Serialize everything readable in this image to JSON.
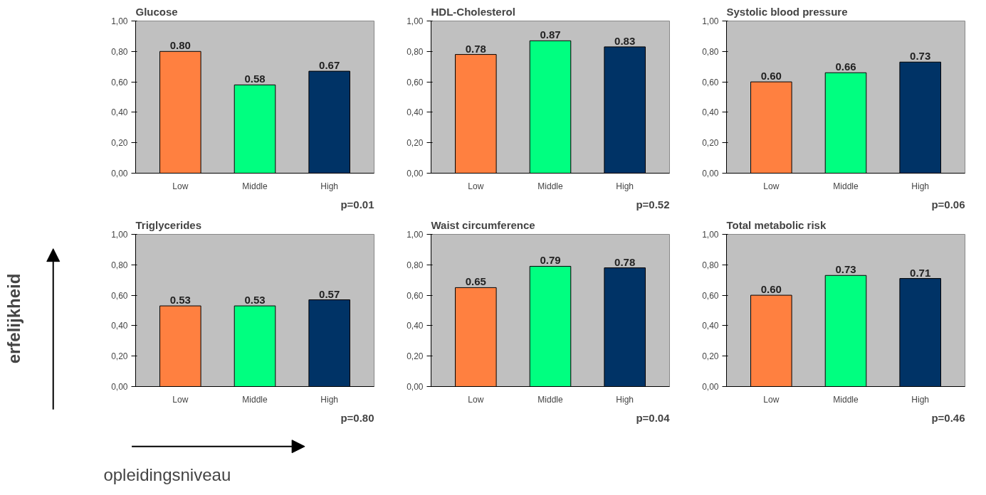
{
  "chart_data": [
    {
      "type": "bar",
      "title": "Glucose",
      "categories": [
        "Low",
        "Middle",
        "High"
      ],
      "values": [
        0.8,
        0.58,
        0.67
      ],
      "value_labels": [
        "0.80",
        "0.58",
        "0.67"
      ],
      "colors": [
        "#ff8040",
        "#00ff80",
        "#003366"
      ],
      "ylim": [
        0,
        1
      ],
      "yticks": [
        {
          "value": 0,
          "label": "0,00"
        },
        {
          "value": 0.2,
          "label": "0,20"
        },
        {
          "value": 0.4,
          "label": "0,40"
        },
        {
          "value": 0.6,
          "label": "0,60"
        },
        {
          "value": 0.8,
          "label": "0,80"
        },
        {
          "value": 1,
          "label": "1,00"
        }
      ],
      "annotations": [
        "p=0.01"
      ]
    },
    {
      "type": "bar",
      "title": "HDL-Cholesterol",
      "categories": [
        "Low",
        "Middle",
        "High"
      ],
      "values": [
        0.78,
        0.87,
        0.83
      ],
      "value_labels": [
        "0.78",
        "0.87",
        "0.83"
      ],
      "colors": [
        "#ff8040",
        "#00ff80",
        "#003366"
      ],
      "ylim": [
        0,
        1
      ],
      "yticks": [
        {
          "value": 0,
          "label": "0,00"
        },
        {
          "value": 0.2,
          "label": "0,20"
        },
        {
          "value": 0.4,
          "label": "0,40"
        },
        {
          "value": 0.6,
          "label": "0,60"
        },
        {
          "value": 0.8,
          "label": "0,80"
        },
        {
          "value": 1,
          "label": "1,00"
        }
      ],
      "annotations": [
        "p=0.52"
      ]
    },
    {
      "type": "bar",
      "title": "Systolic blood pressure",
      "categories": [
        "Low",
        "Middle",
        "High"
      ],
      "values": [
        0.6,
        0.66,
        0.73
      ],
      "value_labels": [
        "0.60",
        "0.66",
        "0.73"
      ],
      "colors": [
        "#ff8040",
        "#00ff80",
        "#003366"
      ],
      "ylim": [
        0,
        1
      ],
      "yticks": [
        {
          "value": 0,
          "label": "0,00"
        },
        {
          "value": 0.2,
          "label": "0,20"
        },
        {
          "value": 0.4,
          "label": "0,40"
        },
        {
          "value": 0.6,
          "label": "0,60"
        },
        {
          "value": 0.8,
          "label": "0,80"
        },
        {
          "value": 1,
          "label": "1,00"
        }
      ],
      "annotations": [
        "p=0.06"
      ]
    },
    {
      "type": "bar",
      "title": "Triglycerides",
      "ylabel": "erfelijkheid",
      "xlabel": "opleidingsniveau",
      "categories": [
        "Low",
        "Middle",
        "High"
      ],
      "values": [
        0.53,
        0.53,
        0.57
      ],
      "value_labels": [
        "0.53",
        "0.53",
        "0.57"
      ],
      "colors": [
        "#ff8040",
        "#00ff80",
        "#003366"
      ],
      "ylim": [
        0,
        1
      ],
      "yticks": [
        {
          "value": 0,
          "label": "0,00"
        },
        {
          "value": 0.2,
          "label": "0,20"
        },
        {
          "value": 0.4,
          "label": "0,40"
        },
        {
          "value": 0.6,
          "label": "0,60"
        },
        {
          "value": 0.8,
          "label": "0,80"
        },
        {
          "value": 1,
          "label": "1,00"
        }
      ],
      "annotations": [
        "p=0.80"
      ]
    },
    {
      "type": "bar",
      "title": "Waist circumference",
      "categories": [
        "Low",
        "Middle",
        "High"
      ],
      "values": [
        0.65,
        0.79,
        0.78
      ],
      "value_labels": [
        "0.65",
        "0.79",
        "0.78"
      ],
      "colors": [
        "#ff8040",
        "#00ff80",
        "#003366"
      ],
      "ylim": [
        0,
        1
      ],
      "yticks": [
        {
          "value": 0,
          "label": "0,00"
        },
        {
          "value": 0.2,
          "label": "0,20"
        },
        {
          "value": 0.4,
          "label": "0,40"
        },
        {
          "value": 0.6,
          "label": "0,60"
        },
        {
          "value": 0.8,
          "label": "0,80"
        },
        {
          "value": 1,
          "label": "1,00"
        }
      ],
      "annotations": [
        "p=0.04"
      ]
    },
    {
      "type": "bar",
      "title": "Total metabolic risk",
      "categories": [
        "Low",
        "Middle",
        "High"
      ],
      "values": [
        0.6,
        0.73,
        0.71
      ],
      "value_labels": [
        "0.60",
        "0.73",
        "0.71"
      ],
      "colors": [
        "#ff8040",
        "#00ff80",
        "#003366"
      ],
      "ylim": [
        0,
        1
      ],
      "yticks": [
        {
          "value": 0,
          "label": "0,00"
        },
        {
          "value": 0.2,
          "label": "0,20"
        },
        {
          "value": 0.4,
          "label": "0,40"
        },
        {
          "value": 0.6,
          "label": "0,60"
        },
        {
          "value": 0.8,
          "label": "0,80"
        },
        {
          "value": 1,
          "label": "1,00"
        }
      ],
      "annotations": [
        "p=0.46"
      ]
    }
  ]
}
